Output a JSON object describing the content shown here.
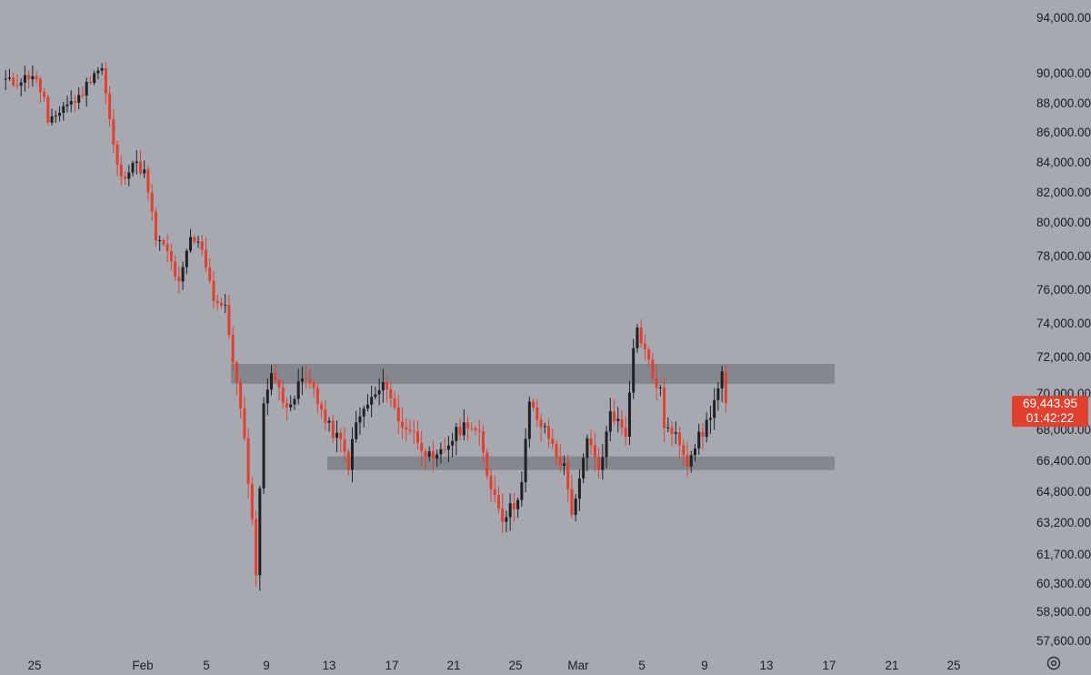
{
  "chart_data": {
    "type": "candlestick",
    "title": "",
    "xlabel": "",
    "ylabel": "",
    "grid": false,
    "ylim": [
      56900,
      95400
    ],
    "price_axis_ticks": [
      "94,000.00",
      "90,000.00",
      "88,000.00",
      "86,000.00",
      "84,000.00",
      "82,000.00",
      "80,000.00",
      "78,000.00",
      "76,000.00",
      "74,000.00",
      "72,000.00",
      "70,000.00",
      "68,000.00",
      "66,400.00",
      "64,800.00",
      "63,200.00",
      "61,700.00",
      "60,300.00",
      "58,900.00",
      "57,600.00"
    ],
    "time_axis_ticks": [
      "25",
      "Feb",
      "5",
      "9",
      "13",
      "17",
      "21",
      "25",
      "Mar",
      "5",
      "9",
      "13",
      "17",
      "21",
      "25"
    ],
    "last_price": {
      "value": 69443.95,
      "label": "69,443.95",
      "countdown": "01:42:22"
    },
    "zones": [
      {
        "name": "resistance",
        "from": 70500,
        "to": 71600
      },
      {
        "name": "support",
        "from": 65900,
        "to": 66600
      }
    ],
    "colors": {
      "up": "#1f1f24",
      "down": "#e2402f",
      "zone": "#7f8188",
      "badge": "#e2402f",
      "background": "#a7a9b1"
    },
    "ohlc_anchors": [
      [
        0,
        89600
      ],
      [
        3,
        89300
      ],
      [
        8,
        89900
      ],
      [
        11,
        88300
      ],
      [
        12,
        86400
      ],
      [
        16,
        87800
      ],
      [
        20,
        88300
      ],
      [
        24,
        90100
      ],
      [
        26,
        90300
      ],
      [
        29,
        85000
      ],
      [
        31,
        82800
      ],
      [
        34,
        84000
      ],
      [
        37,
        83300
      ],
      [
        40,
        79000
      ],
      [
        43,
        78200
      ],
      [
        46,
        76200
      ],
      [
        49,
        79000
      ],
      [
        52,
        78500
      ],
      [
        55,
        75500
      ],
      [
        58,
        74800
      ],
      [
        62,
        69000
      ],
      [
        64,
        65500
      ],
      [
        66,
        60900
      ],
      [
        68,
        69200
      ],
      [
        70,
        71400
      ],
      [
        73,
        69400
      ],
      [
        76,
        69800
      ],
      [
        78,
        70800
      ],
      [
        81,
        70300
      ],
      [
        84,
        68400
      ],
      [
        88,
        67300
      ],
      [
        90,
        66200
      ],
      [
        92,
        68300
      ],
      [
        95,
        69400
      ],
      [
        98,
        70100
      ],
      [
        100,
        70500
      ],
      [
        103,
        68400
      ],
      [
        106,
        68000
      ],
      [
        109,
        67200
      ],
      [
        112,
        66200
      ],
      [
        115,
        67000
      ],
      [
        118,
        67800
      ],
      [
        121,
        68400
      ],
      [
        124,
        67600
      ],
      [
        126,
        65700
      ],
      [
        128,
        64600
      ],
      [
        130,
        63500
      ],
      [
        133,
        64100
      ],
      [
        135,
        65200
      ],
      [
        137,
        69400
      ],
      [
        140,
        68200
      ],
      [
        142,
        67600
      ],
      [
        144,
        66700
      ],
      [
        146,
        66000
      ],
      [
        148,
        63800
      ],
      [
        150,
        65200
      ],
      [
        152,
        67400
      ],
      [
        155,
        66100
      ],
      [
        156,
        66400
      ],
      [
        158,
        69100
      ],
      [
        160,
        68400
      ],
      [
        162,
        67800
      ],
      [
        164,
        72800
      ],
      [
        165,
        73600
      ],
      [
        167,
        72400
      ],
      [
        169,
        70900
      ],
      [
        171,
        70000
      ],
      [
        172,
        68300
      ],
      [
        174,
        67700
      ],
      [
        176,
        67400
      ],
      [
        178,
        66400
      ],
      [
        180,
        67300
      ],
      [
        182,
        67800
      ],
      [
        184,
        68900
      ],
      [
        186,
        70200
      ],
      [
        187,
        70900
      ],
      [
        188,
        69443.95
      ]
    ]
  },
  "icons": {
    "settings": "gear-icon"
  }
}
